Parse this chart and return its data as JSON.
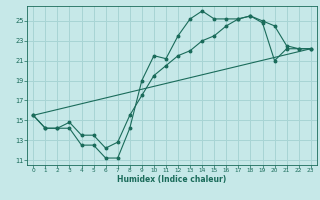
{
  "xlabel": "Humidex (Indice chaleur)",
  "bg_color": "#c6e8e8",
  "grid_color": "#a8d4d4",
  "line_color": "#1a6b5a",
  "xlim": [
    -0.5,
    23.5
  ],
  "ylim": [
    10.5,
    26.5
  ],
  "xticks": [
    0,
    1,
    2,
    3,
    4,
    5,
    6,
    7,
    8,
    9,
    10,
    11,
    12,
    13,
    14,
    15,
    16,
    17,
    18,
    19,
    20,
    21,
    22,
    23
  ],
  "yticks": [
    11,
    13,
    15,
    17,
    19,
    21,
    23,
    25
  ],
  "line1_x": [
    0,
    1,
    2,
    3,
    4,
    5,
    6,
    7,
    8,
    9,
    10,
    11,
    12,
    13,
    14,
    15,
    16,
    17,
    18,
    19,
    20,
    21,
    22,
    23
  ],
  "line1_y": [
    15.5,
    14.2,
    14.2,
    14.2,
    12.5,
    12.5,
    11.2,
    11.2,
    14.2,
    19.0,
    21.5,
    21.2,
    23.5,
    25.2,
    26.0,
    25.2,
    25.2,
    25.2,
    25.5,
    24.8,
    21.0,
    22.2,
    22.2,
    22.2
  ],
  "line2_x": [
    0,
    1,
    2,
    3,
    4,
    5,
    6,
    7,
    8,
    9,
    10,
    11,
    12,
    13,
    14,
    15,
    16,
    17,
    18,
    19,
    20,
    21,
    22,
    23
  ],
  "line2_y": [
    15.5,
    14.2,
    14.2,
    14.8,
    13.5,
    13.5,
    12.2,
    12.8,
    15.5,
    17.5,
    19.5,
    20.5,
    21.5,
    22.0,
    23.0,
    23.5,
    24.5,
    25.2,
    25.5,
    25.0,
    24.5,
    22.5,
    22.2,
    22.2
  ],
  "line3_x": [
    0,
    23
  ],
  "line3_y": [
    15.5,
    22.2
  ]
}
